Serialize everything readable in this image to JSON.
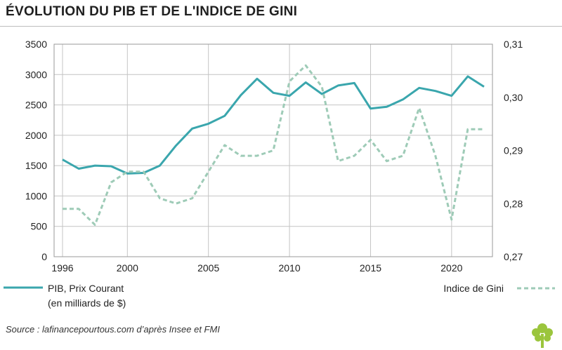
{
  "title": "ÉVOLUTION DU PIB ET DE L'INDICE DE GINI",
  "source": "Source : lafinancepourtous.com d’après Insee et FMI",
  "colors": {
    "pib": "#3aa6ad",
    "gini": "#9ecbb7",
    "grid": "#c4c4c4",
    "logo": "#9bc53d"
  },
  "chart_data": {
    "type": "line",
    "title": "ÉVOLUTION DU PIB ET DE L'INDICE DE GINI",
    "x": [
      1996,
      1997,
      1998,
      1999,
      2000,
      2001,
      2002,
      2003,
      2004,
      2005,
      2006,
      2007,
      2008,
      2009,
      2010,
      2011,
      2012,
      2013,
      2014,
      2015,
      2016,
      2017,
      2018,
      2019,
      2020,
      2021,
      2022
    ],
    "xlim": [
      1996,
      2022
    ],
    "xticks": [
      "1996",
      "2000",
      "2005",
      "2010",
      "2015",
      "2020"
    ],
    "y_left": {
      "ylim": [
        0,
        3500
      ],
      "ticks": [
        "0",
        "500",
        "1000",
        "1500",
        "2000",
        "2500",
        "3000",
        "3500"
      ]
    },
    "y_right": {
      "ylim": [
        0.27,
        0.31
      ],
      "ticks": [
        "0,27",
        "0,28",
        "0,29",
        "0,30",
        "0,31"
      ]
    },
    "grid": true,
    "legend_position": "bottom",
    "series": [
      {
        "name_lines": [
          "PIB, Prix Courant",
          "(en milliards de $)"
        ],
        "axis": "left",
        "style": "solid",
        "values": [
          1600,
          1450,
          1500,
          1490,
          1370,
          1380,
          1500,
          1830,
          2110,
          2190,
          2320,
          2660,
          2930,
          2700,
          2650,
          2870,
          2680,
          2820,
          2860,
          2440,
          2470,
          2590,
          2780,
          2730,
          2650,
          2970,
          2800
        ]
      },
      {
        "name": "Indice de Gini",
        "axis": "right",
        "style": "dashed",
        "values": [
          0.279,
          0.279,
          0.276,
          0.284,
          0.286,
          0.286,
          0.281,
          0.28,
          0.281,
          0.286,
          0.291,
          0.289,
          0.289,
          0.29,
          0.303,
          0.306,
          0.302,
          0.288,
          0.289,
          0.292,
          0.288,
          0.289,
          0.298,
          0.289,
          0.277,
          0.294,
          0.294
        ]
      }
    ]
  }
}
